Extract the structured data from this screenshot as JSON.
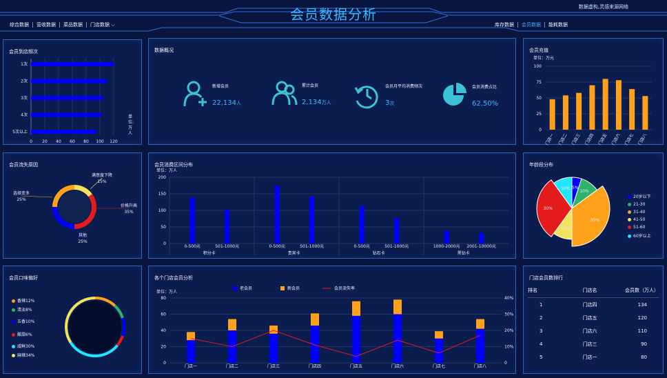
{
  "header": {
    "title": "会员数据分析",
    "note": "数据虚构,灵感来源网络"
  },
  "nav_left": [
    "综合数据",
    "营收数据",
    "菜品数据",
    "门店数据"
  ],
  "nav_right": [
    "库存数据",
    "会员数据",
    "能耗数据"
  ],
  "panels": {
    "visit": {
      "title": "会员到店频次",
      "unit_label": "单\n位:\n万\n人"
    },
    "overview": {
      "title": "数据概况"
    },
    "recharge": {
      "title": "会员充值",
      "unit_label": "单位：万元"
    },
    "loss": {
      "title": "会员流失原因"
    },
    "consume": {
      "title": "会员消费区间分布",
      "unit_label": "单位：万人"
    },
    "age": {
      "title": "年龄段分布"
    },
    "taste": {
      "title": "会员口味偏好"
    },
    "stores": {
      "title": "各个门店会员分析",
      "unit_label": "单位：万人"
    },
    "rank": {
      "title": "门店会员数排行"
    }
  },
  "overview": {
    "items": [
      {
        "icon": "new-member-icon",
        "label": "新增会员",
        "value": "22,134",
        "unit": "人"
      },
      {
        "icon": "total-members-icon",
        "label": "累计会员",
        "value": "2,134",
        "unit": "万人"
      },
      {
        "icon": "monthly-frequency-icon",
        "label": "会员月平均消费频次",
        "value": "3",
        "unit": "次"
      },
      {
        "icon": "pie-share-icon",
        "label": "会员消费占比",
        "value": "62.50%",
        "unit": ""
      }
    ]
  },
  "rank": {
    "headers": [
      "排名",
      "门店名",
      "会员数（万人）"
    ],
    "rows": [
      [
        "1",
        "门店四",
        "134"
      ],
      [
        "2",
        "门店五",
        "120"
      ],
      [
        "3",
        "门店六",
        "110"
      ],
      [
        "4",
        "门店三",
        "90"
      ],
      [
        "5",
        "门店一",
        "80"
      ]
    ]
  },
  "colors": {
    "blue": "#0000ff",
    "orange": "#ffa21a",
    "red": "#e41b1b",
    "cyan": "#22e5ff",
    "yellow": "#f2e35c",
    "green": "#2eb36b",
    "dark_blue": "#1b39a4"
  },
  "chart_data": [
    {
      "type": "bar",
      "title": "会员到店频次",
      "categories": [
        "1次",
        "2次",
        "3次",
        "4次",
        "5次以上"
      ],
      "values": [
        120,
        110,
        105,
        102,
        95
      ],
      "xlim": [
        0,
        130
      ],
      "xticks": [
        0,
        20,
        40,
        60,
        80,
        100,
        120
      ],
      "unit": "单位:万人"
    },
    {
      "type": "bar",
      "title": "会员充值",
      "categories": [
        "门店一",
        "门店二",
        "门店三",
        "门店四",
        "门店五",
        "门店六",
        "门店七",
        "门店八"
      ],
      "values": [
        48,
        54,
        58,
        70,
        80,
        78,
        64,
        53
      ],
      "ylim": [
        0,
        100
      ],
      "yticks": [
        0,
        25,
        50,
        75,
        100
      ],
      "unit": "单位：万元"
    },
    {
      "type": "pie",
      "title": "会员流失原因",
      "slices": [
        {
          "label": "满意度下降",
          "value": 15
        },
        {
          "label": "价格升高",
          "value": 35
        },
        {
          "label": "其他",
          "value": 25
        },
        {
          "label": "选择变多",
          "value": 25
        }
      ]
    },
    {
      "type": "bar",
      "title": "会员消费区间分布",
      "groups": [
        {
          "card": "积分卡",
          "categories": [
            "0-500元",
            "501-1000元"
          ],
          "values": [
            138,
            102
          ]
        },
        {
          "card": "贵宾卡",
          "categories": [
            "0-500元",
            "501-1000元"
          ],
          "values": [
            175,
            142
          ]
        },
        {
          "card": "钻石卡",
          "categories": [
            "0-500元",
            "501-1000元"
          ],
          "values": [
            113,
            76
          ]
        },
        {
          "card": "黑钻卡",
          "categories": [
            "1000-2000元",
            "2001-10000元"
          ],
          "values": [
            38,
            32
          ]
        }
      ],
      "ylim": [
        0,
        200
      ],
      "yticks": [
        0,
        50,
        100,
        150,
        200
      ],
      "unit": "单位：万人"
    },
    {
      "type": "pie",
      "title": "年龄段分布",
      "slices": [
        {
          "label": "20岁以下",
          "value": 5
        },
        {
          "label": "21-30",
          "value": 10
        },
        {
          "label": "31-40",
          "value": 35
        },
        {
          "label": "41-50",
          "value": 10
        },
        {
          "label": "51-60",
          "value": 30
        },
        {
          "label": "60岁以上",
          "value": 10
        }
      ]
    },
    {
      "type": "pie",
      "title": "会员口味偏好",
      "slices": [
        {
          "label": "香辣12%",
          "value": 12
        },
        {
          "label": "清淡8%",
          "value": 8
        },
        {
          "label": "五香10%",
          "value": 10
        },
        {
          "label": "酸甜6%",
          "value": 6
        },
        {
          "label": "咸鲜30%",
          "value": 30
        },
        {
          "label": "麻辣34%",
          "value": 34
        }
      ]
    },
    {
      "type": "bar",
      "title": "各个门店会员分析",
      "categories": [
        "门店一",
        "门店二",
        "门店三",
        "门店四",
        "门店五",
        "门店六",
        "门店七",
        "门店八"
      ],
      "series": [
        {
          "name": "老会员",
          "values": [
            28,
            40,
            36,
            46,
            58,
            60,
            30,
            42
          ]
        },
        {
          "name": "新会员",
          "values": [
            10,
            14,
            10,
            15,
            18,
            18,
            9,
            12
          ]
        },
        {
          "name": "会员流失率",
          "values": [
            15,
            10,
            20,
            11,
            4,
            14,
            6,
            17
          ]
        }
      ],
      "ylim": [
        0,
        80
      ],
      "yticks": [
        0,
        20,
        40,
        60,
        80
      ],
      "y2lim": [
        0,
        40
      ],
      "y2ticks": [
        "0",
        "10%",
        "20%",
        "30%",
        "40%"
      ],
      "unit": "单位：万人"
    }
  ]
}
